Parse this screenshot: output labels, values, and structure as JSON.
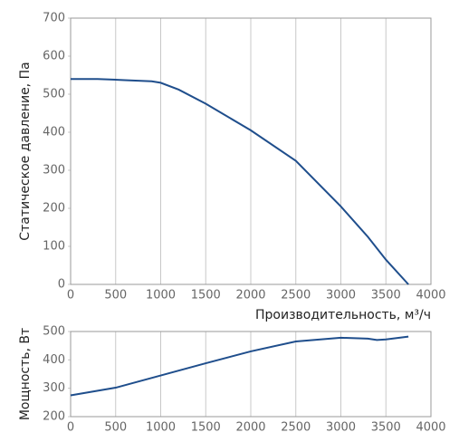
{
  "chart_data": [
    {
      "type": "line",
      "x_label": "Производительность, м³/ч",
      "y_label": "Статическое давление, Па",
      "series": [
        {
          "name": "Статическое давление",
          "color": "#1f4e8c",
          "x": [
            0,
            300,
            600,
            900,
            1000,
            1200,
            1500,
            2000,
            2500,
            3000,
            3300,
            3500,
            3750
          ],
          "values": [
            540,
            540,
            537,
            534,
            530,
            512,
            475,
            405,
            325,
            205,
            125,
            65,
            0
          ]
        }
      ],
      "xlim": [
        0,
        4000
      ],
      "xticks": [
        0,
        500,
        1000,
        1500,
        2000,
        2500,
        3000,
        3500,
        4000
      ],
      "ylim": [
        0,
        700
      ],
      "yticks": [
        0,
        100,
        200,
        300,
        400,
        500,
        600,
        700
      ],
      "grid": true
    },
    {
      "type": "line",
      "y_label": "Мощность, Вт",
      "series": [
        {
          "name": "Мощность",
          "color": "#1f4e8c",
          "x": [
            0,
            500,
            1000,
            1500,
            2000,
            2500,
            3000,
            3300,
            3400,
            3500,
            3750
          ],
          "values": [
            275,
            302,
            345,
            388,
            430,
            465,
            478,
            475,
            470,
            472,
            482
          ]
        }
      ],
      "xlim": [
        0,
        4000
      ],
      "xticks": [
        0,
        500,
        1000,
        1500,
        2000,
        2500,
        3000,
        3500,
        4000
      ],
      "ylim": [
        200,
        500
      ],
      "yticks": [
        200,
        300,
        400,
        500
      ],
      "grid": true
    }
  ]
}
